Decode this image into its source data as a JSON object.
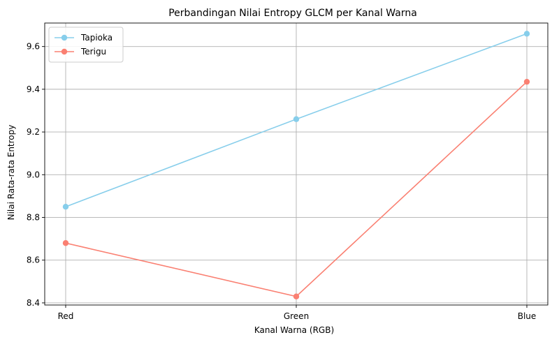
{
  "chart_data": {
    "type": "line",
    "title": "Perbandingan Nilai Entropy GLCM per Kanal Warna",
    "xlabel": "Kanal Warna (RGB)",
    "ylabel": "Nilai Rata-rata Entropy",
    "categories": [
      "Red",
      "Green",
      "Blue"
    ],
    "ylim": [
      8.39,
      9.71
    ],
    "yticks": [
      8.4,
      8.6,
      8.8,
      9.0,
      9.2,
      9.4,
      9.6
    ],
    "ytick_labels": [
      "8.4",
      "8.6",
      "8.8",
      "9.0",
      "9.2",
      "9.4",
      "9.6"
    ],
    "grid": true,
    "legend_position": "top-left",
    "series": [
      {
        "name": "Tapioka",
        "color": "#87ceeb",
        "values": [
          8.85,
          9.26,
          9.66
        ]
      },
      {
        "name": "Terigu",
        "color": "#fa8072",
        "values": [
          8.68,
          8.43,
          9.435
        ]
      }
    ]
  }
}
